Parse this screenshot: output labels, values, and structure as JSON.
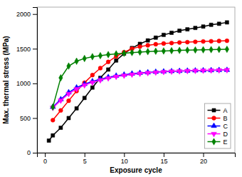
{
  "chart_data": {
    "type": "line",
    "xlabel": "Exposure cycle",
    "ylabel": "Max. thermal stress (MPa)",
    "xlim": [
      -1,
      24
    ],
    "ylim": [
      0,
      2100
    ],
    "xticks": [
      0,
      5,
      10,
      15,
      20
    ],
    "yticks": [
      0,
      500,
      1000,
      1500,
      2000
    ],
    "grid": false,
    "legend": "lower right",
    "series": [
      {
        "name": "A",
        "color": "#000000",
        "marker": "square",
        "x": [
          0.5,
          1,
          2,
          3,
          4,
          5,
          6,
          7,
          8,
          9,
          10,
          11,
          12,
          13,
          14,
          15,
          16,
          17,
          18,
          19,
          20,
          21,
          22,
          23
        ],
        "values": [
          175,
          250,
          360,
          500,
          640,
          790,
          940,
          1080,
          1200,
          1330,
          1430,
          1510,
          1570,
          1620,
          1660,
          1700,
          1730,
          1760,
          1780,
          1800,
          1820,
          1845,
          1860,
          1880
        ]
      },
      {
        "name": "B",
        "color": "#ff0000",
        "marker": "circle",
        "x": [
          1,
          2,
          3,
          4,
          5,
          6,
          7,
          8,
          9,
          10,
          11,
          12,
          13,
          14,
          15,
          16,
          17,
          18,
          19,
          20,
          21,
          22,
          23
        ],
        "values": [
          470,
          610,
          750,
          890,
          1010,
          1120,
          1220,
          1310,
          1390,
          1450,
          1500,
          1530,
          1550,
          1565,
          1575,
          1582,
          1590,
          1595,
          1600,
          1605,
          1608,
          1612,
          1615
        ]
      },
      {
        "name": "C",
        "color": "#0000ff",
        "marker": "triangle-up",
        "x": [
          1,
          2,
          3,
          4,
          5,
          6,
          7,
          8,
          9,
          10,
          11,
          12,
          13,
          14,
          15,
          16,
          17,
          18,
          19,
          20,
          21,
          22,
          23
        ],
        "values": [
          660,
          770,
          870,
          940,
          990,
          1030,
          1060,
          1090,
          1110,
          1125,
          1140,
          1150,
          1158,
          1165,
          1170,
          1175,
          1178,
          1182,
          1185,
          1187,
          1189,
          1191,
          1193
        ]
      },
      {
        "name": "D",
        "color": "#ff00ff",
        "marker": "triangle-down",
        "x": [
          1,
          2,
          3,
          4,
          5,
          6,
          7,
          8,
          9,
          10,
          11,
          12,
          13,
          14,
          15,
          16,
          17,
          18,
          19,
          20,
          21,
          22,
          23
        ],
        "values": [
          650,
          755,
          850,
          920,
          975,
          1015,
          1048,
          1075,
          1098,
          1115,
          1130,
          1142,
          1152,
          1160,
          1167,
          1173,
          1177,
          1181,
          1184,
          1187,
          1189,
          1191,
          1193
        ]
      },
      {
        "name": "E",
        "color": "#008000",
        "marker": "diamond",
        "x": [
          1,
          2,
          3,
          4,
          5,
          6,
          7,
          8,
          9,
          10,
          11,
          12,
          13,
          14,
          15,
          16,
          17,
          18,
          19,
          20,
          21,
          22,
          23
        ],
        "values": [
          660,
          1080,
          1250,
          1320,
          1360,
          1385,
          1400,
          1415,
          1425,
          1435,
          1445,
          1452,
          1458,
          1464,
          1468,
          1472,
          1476,
          1479,
          1482,
          1485,
          1487,
          1490,
          1492
        ]
      }
    ]
  }
}
